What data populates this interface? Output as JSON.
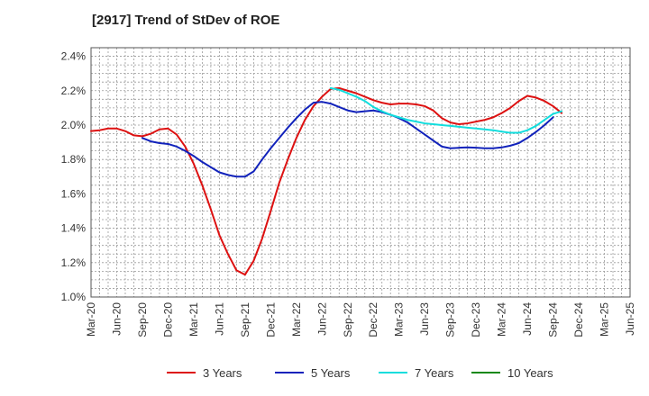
{
  "chart_data": {
    "type": "line",
    "title": "[2917]  Trend of StDev of ROE",
    "xlabel": "",
    "ylabel": "",
    "x_ticks": [
      "Mar-20",
      "Jun-20",
      "Sep-20",
      "Dec-20",
      "Mar-21",
      "Jun-21",
      "Sep-21",
      "Dec-21",
      "Mar-22",
      "Jun-22",
      "Sep-22",
      "Dec-22",
      "Mar-23",
      "Jun-23",
      "Sep-23",
      "Dec-23",
      "Mar-24",
      "Jun-24",
      "Sep-24",
      "Dec-24",
      "Mar-25",
      "Jun-25"
    ],
    "y_ticks": [
      "1.0%",
      "1.2%",
      "1.4%",
      "1.6%",
      "1.8%",
      "2.0%",
      "2.2%",
      "2.4%"
    ],
    "ylim": [
      1.0,
      2.45
    ],
    "grid": true,
    "legend_position": "bottom",
    "series": [
      {
        "name": "3 Years",
        "color": "#dd1111",
        "values": [
          1.965,
          1.97,
          1.98,
          1.98,
          1.965,
          1.94,
          1.935,
          1.95,
          1.975,
          1.98,
          1.945,
          1.875,
          1.775,
          1.65,
          1.51,
          1.36,
          1.25,
          1.155,
          1.13,
          1.21,
          1.34,
          1.5,
          1.665,
          1.8,
          1.925,
          2.03,
          2.11,
          2.165,
          2.21,
          2.215,
          2.2,
          2.185,
          2.165,
          2.145,
          2.13,
          2.12,
          2.125,
          2.125,
          2.12,
          2.11,
          2.085,
          2.04,
          2.015,
          2.005,
          2.01,
          2.02,
          2.03,
          2.045,
          2.07,
          2.1,
          2.14,
          2.17,
          2.16,
          2.14,
          2.11,
          2.07
        ]
      },
      {
        "name": "5 Years",
        "color": "#1122bb",
        "values": [
          null,
          null,
          null,
          null,
          null,
          null,
          1.925,
          1.905,
          1.895,
          1.89,
          1.875,
          1.85,
          1.82,
          1.785,
          1.755,
          1.725,
          1.71,
          1.7,
          1.7,
          1.73,
          1.8,
          1.865,
          1.925,
          1.985,
          2.04,
          2.09,
          2.13,
          2.135,
          2.125,
          2.105,
          2.085,
          2.075,
          2.08,
          2.085,
          2.075,
          2.06,
          2.04,
          2.015,
          1.98,
          1.945,
          1.91,
          1.875,
          1.865,
          1.868,
          1.87,
          1.868,
          1.865,
          1.865,
          1.87,
          1.88,
          1.895,
          1.925,
          1.96,
          2.0,
          2.045,
          null
        ]
      },
      {
        "name": "7 Years",
        "color": "#11dddd",
        "values": [
          null,
          null,
          null,
          null,
          null,
          null,
          null,
          null,
          null,
          null,
          null,
          null,
          null,
          null,
          null,
          null,
          null,
          null,
          null,
          null,
          null,
          null,
          null,
          null,
          null,
          null,
          null,
          null,
          2.215,
          2.205,
          2.185,
          2.165,
          2.14,
          2.105,
          2.08,
          2.06,
          2.045,
          2.03,
          2.02,
          2.01,
          2.005,
          2.0,
          1.995,
          1.99,
          1.985,
          1.98,
          1.975,
          1.97,
          1.962,
          1.955,
          1.955,
          1.97,
          1.995,
          2.03,
          2.065,
          2.08
        ]
      },
      {
        "name": "10 Years",
        "color": "#118811",
        "values": []
      }
    ]
  }
}
